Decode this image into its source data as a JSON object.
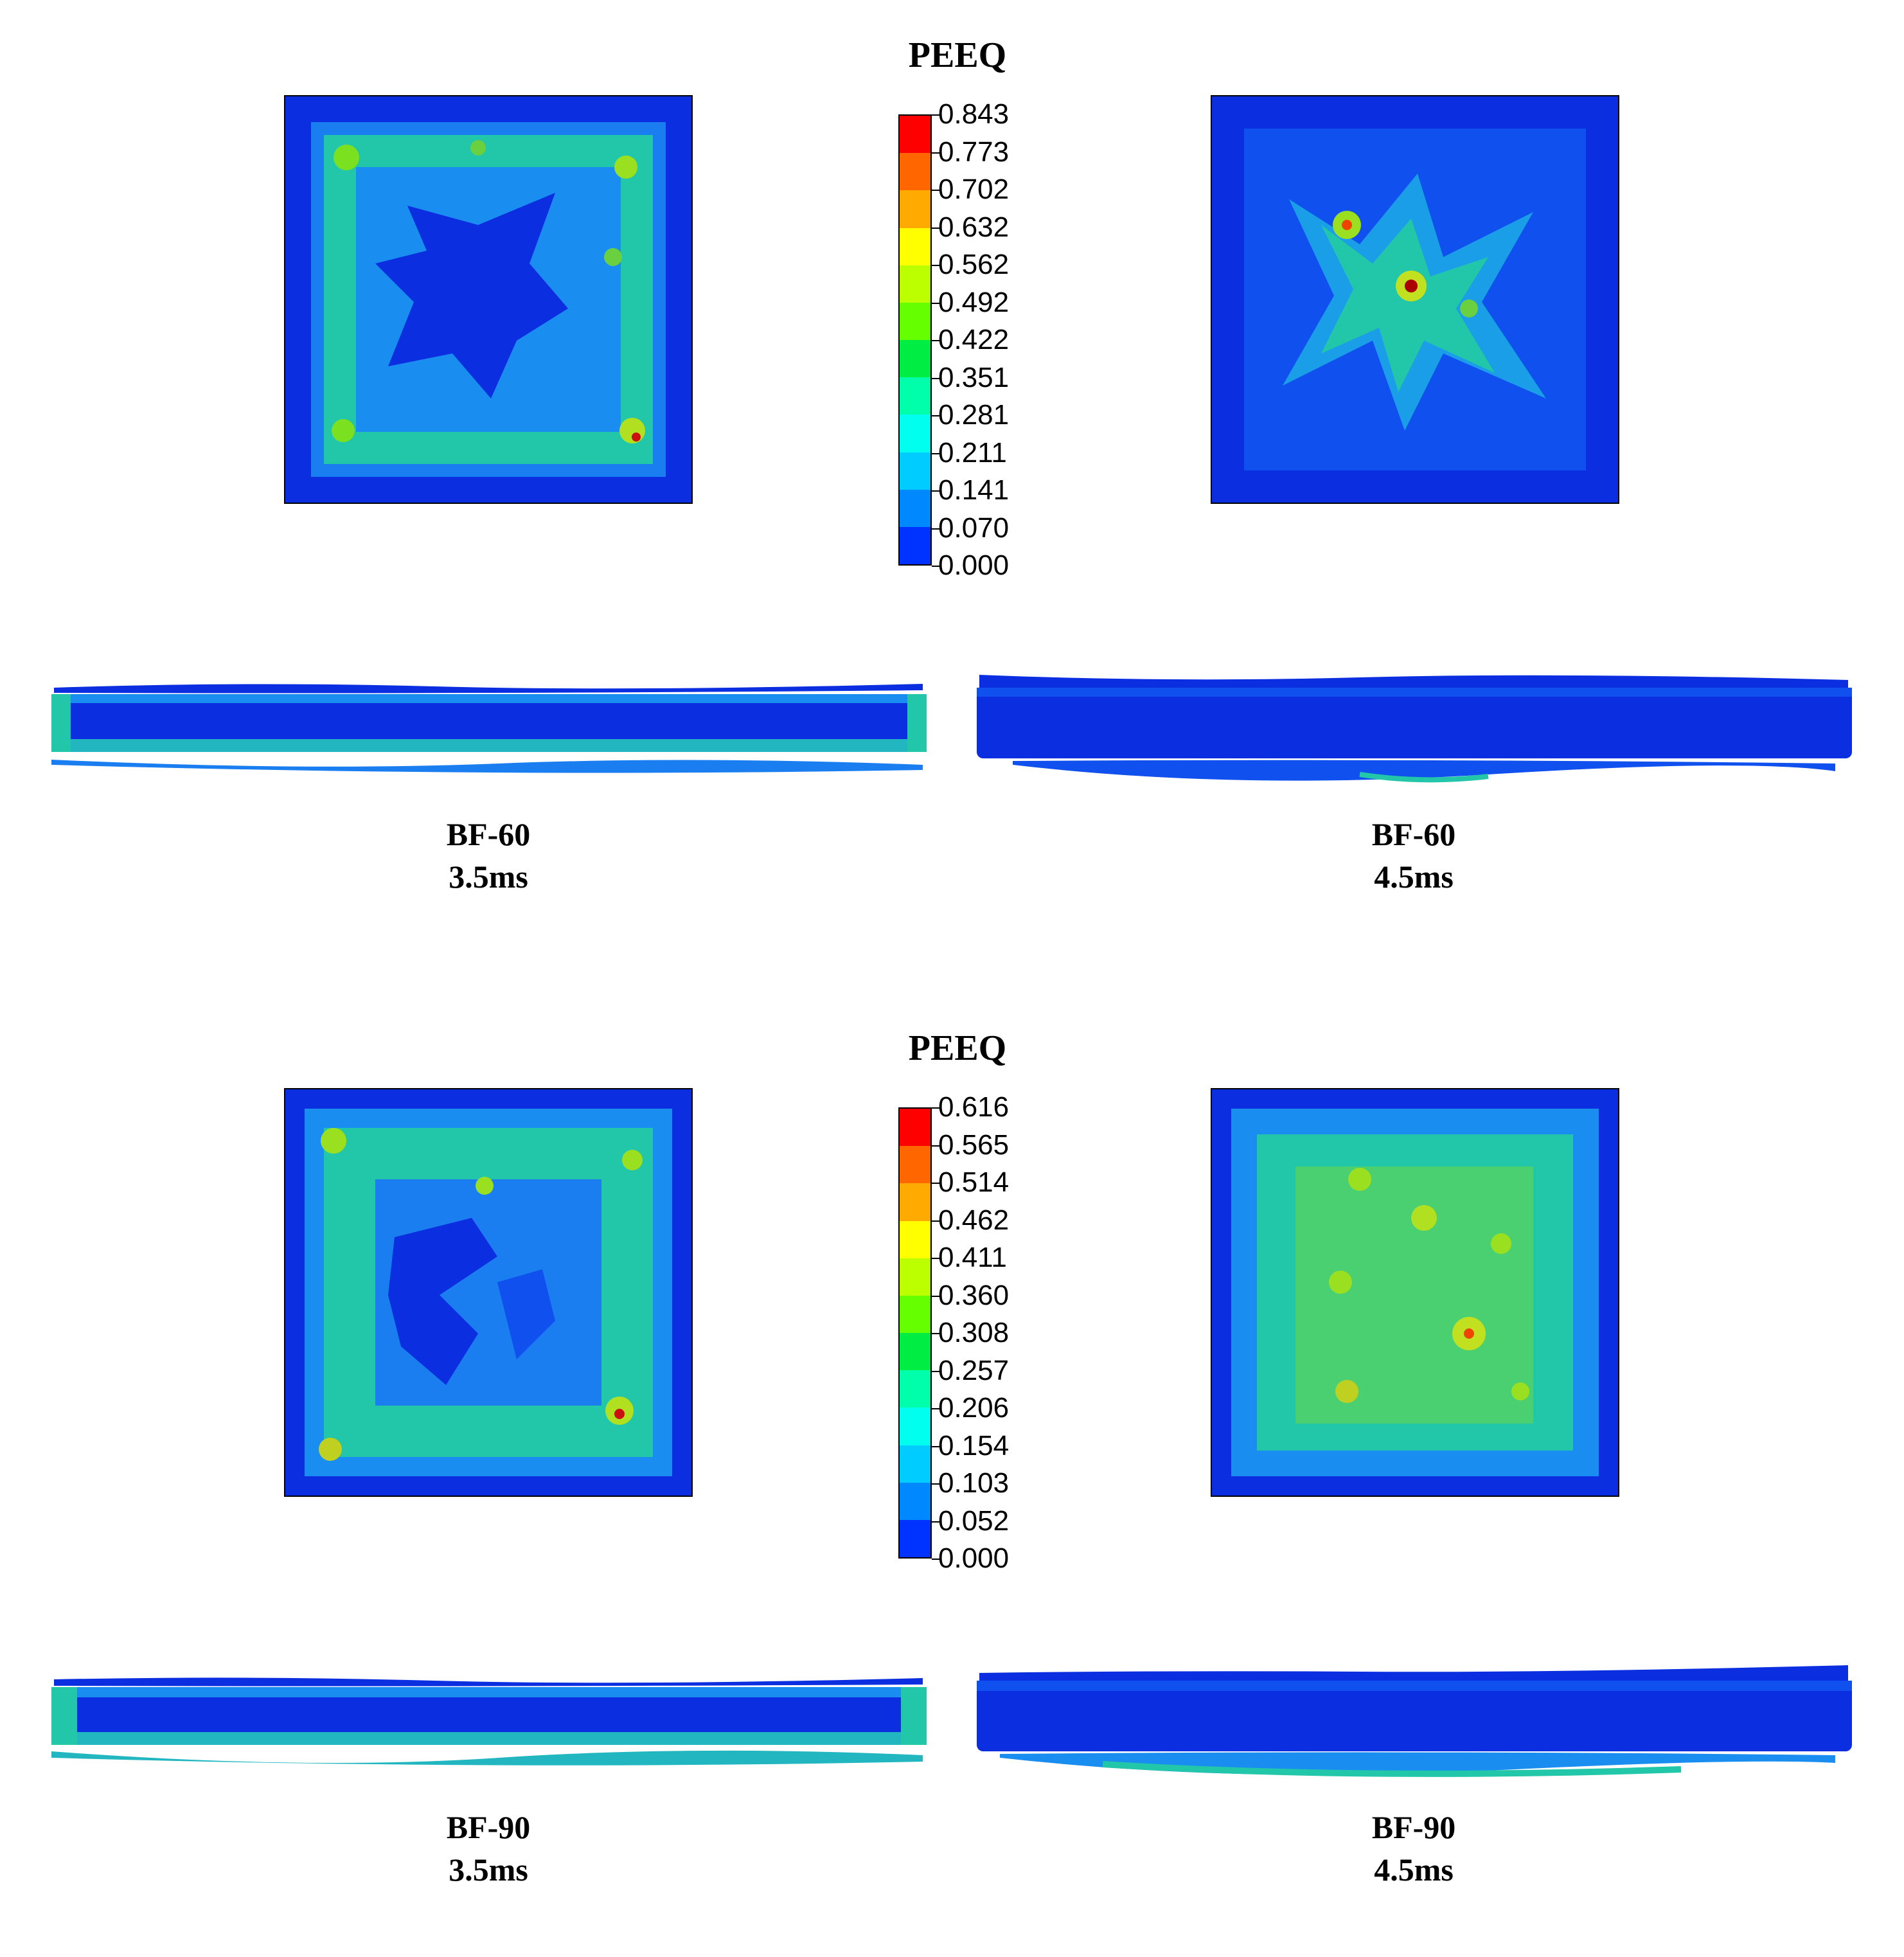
{
  "panels": [
    {
      "legend_title": "PEEQ",
      "legend_values": [
        "0.843",
        "0.773",
        "0.702",
        "0.632",
        "0.562",
        "0.492",
        "0.422",
        "0.351",
        "0.281",
        "0.211",
        "0.141",
        "0.070",
        "0.000"
      ],
      "left_caption": {
        "label": "BF-60",
        "time": "3.5ms"
      },
      "right_caption": {
        "label": "BF-60",
        "time": "4.5ms"
      }
    },
    {
      "legend_title": "PEEQ",
      "legend_values": [
        "0.616",
        "0.565",
        "0.514",
        "0.462",
        "0.411",
        "0.360",
        "0.308",
        "0.257",
        "0.206",
        "0.154",
        "0.103",
        "0.052",
        "0.000"
      ],
      "left_caption": {
        "label": "BF-90",
        "time": "3.5ms"
      },
      "right_caption": {
        "label": "BF-90",
        "time": "4.5ms"
      }
    }
  ],
  "colormap": [
    "#ff0000",
    "#ff6600",
    "#ffaa00",
    "#ffff00",
    "#bbff00",
    "#66ff00",
    "#00ee44",
    "#00ffaa",
    "#00ffee",
    "#00ccff",
    "#0088ff",
    "#0033ff"
  ]
}
